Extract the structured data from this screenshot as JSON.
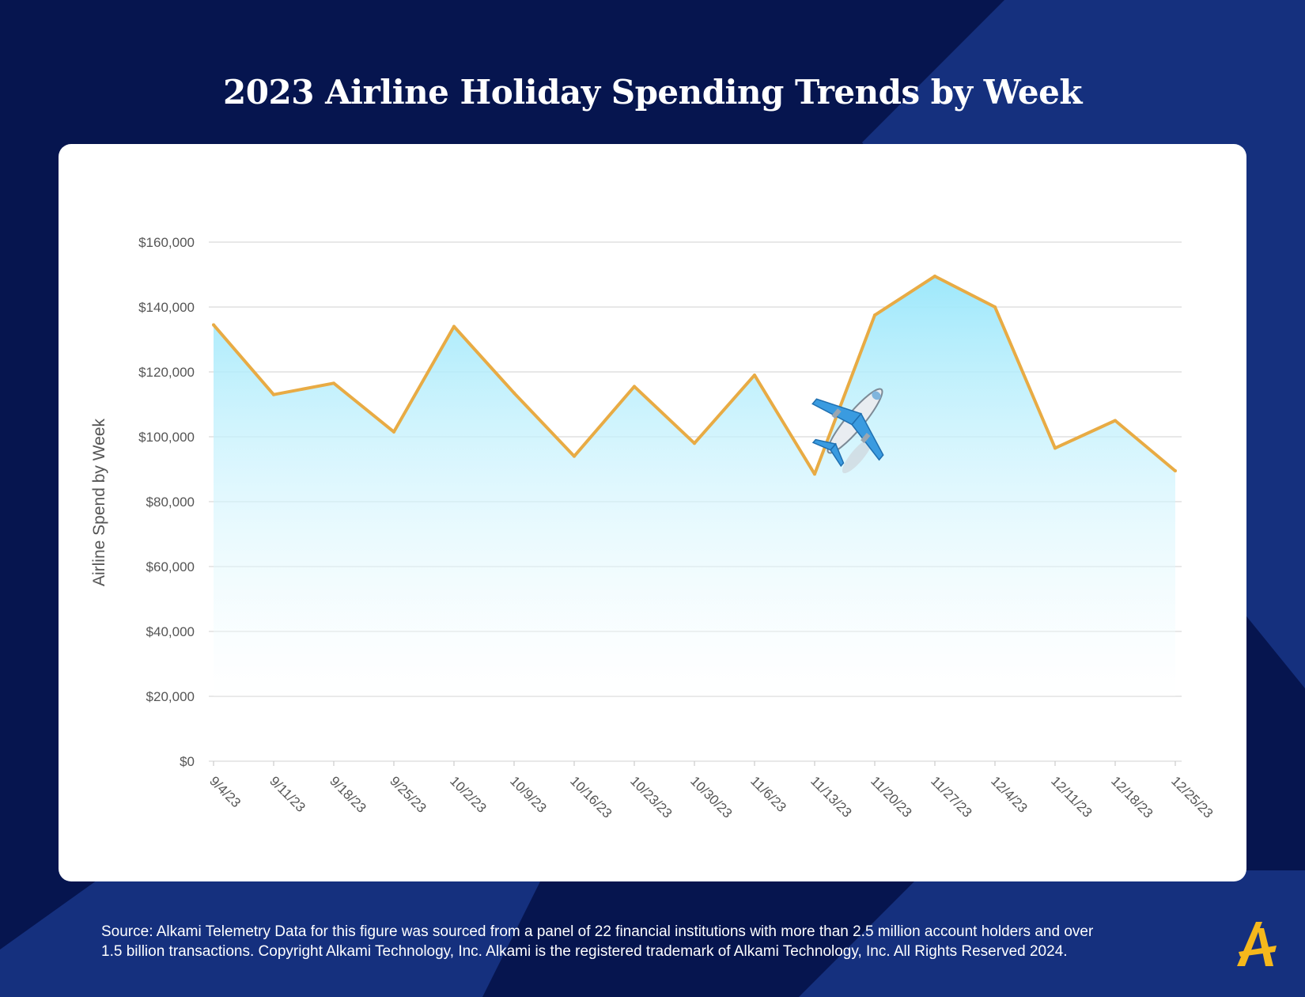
{
  "title": "2023 Airline Holiday Spending Trends by Week",
  "footer": {
    "source_line1": "Source:  Alkami Telemetry Data for this figure was sourced from a panel of 22 financial institutions with more than 2.5 million account holders and over",
    "source_line2": "1.5 billion transactions. Copyright Alkami Technology, Inc. Alkami is the registered trademark of Alkami Technology, Inc. All Rights Reserved 2024.",
    "logo": "alkami-logo"
  },
  "colors": {
    "background": "#06154f",
    "background_stripe": "#15307e",
    "line": "#e8ab44",
    "area_top": "#9ee8fb",
    "logo": "#f5b81c"
  },
  "icons": [
    "airplane-icon"
  ],
  "chart_data": {
    "type": "area",
    "title": "2023 Airline Holiday Spending Trends by Week",
    "xlabel": "",
    "ylabel": "Airline Spend by Week",
    "ylim": [
      0,
      160000
    ],
    "yticks": [
      0,
      20000,
      40000,
      60000,
      80000,
      100000,
      120000,
      140000,
      160000
    ],
    "ytick_labels": [
      "$0",
      "$20,000",
      "$40,000",
      "$60,000",
      "$80,000",
      "$100,000",
      "$120,000",
      "$140,000",
      "$160,000"
    ],
    "grid": true,
    "categories": [
      "9/4/23",
      "9/11/23",
      "9/18/23",
      "9/25/23",
      "10/2/23",
      "10/9/23",
      "10/16/23",
      "10/23/23",
      "10/30/23",
      "11/6/23",
      "11/13/23",
      "11/20/23",
      "11/27/23",
      "12/4/23",
      "12/11/23",
      "12/18/23",
      "12/25/23"
    ],
    "values": [
      134500,
      113000,
      116500,
      101500,
      134000,
      113500,
      94000,
      115500,
      98000,
      119000,
      88500,
      137500,
      149500,
      140000,
      96500,
      105000,
      89500
    ]
  }
}
